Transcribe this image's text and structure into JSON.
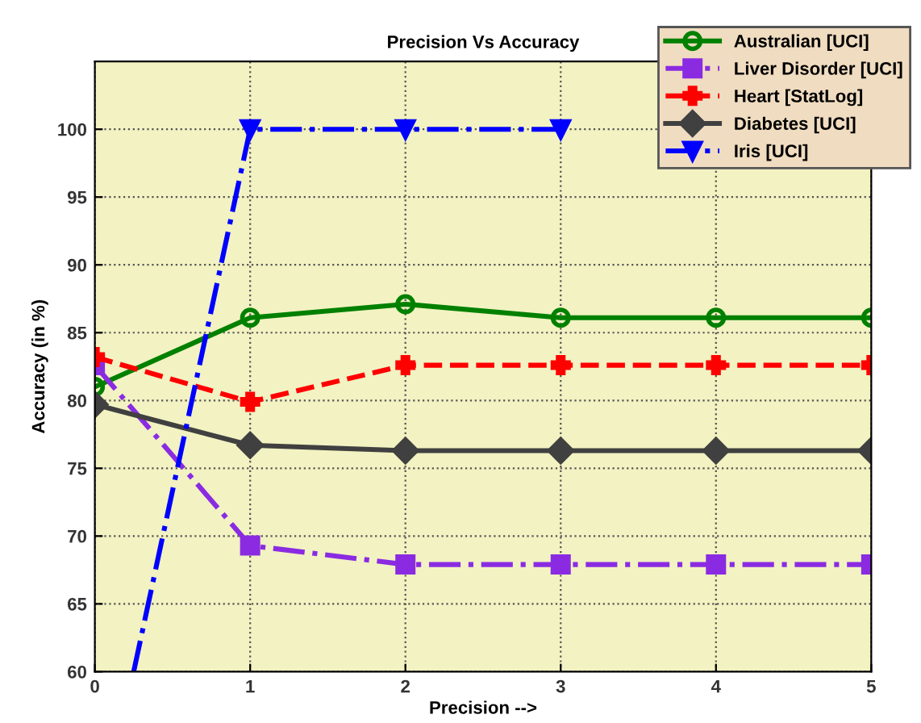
{
  "chart_data": {
    "type": "line",
    "title": "Precision Vs Accuracy",
    "xlabel": "Precision -->",
    "ylabel": "Accuracy (in %)",
    "x": [
      0,
      1,
      2,
      3,
      4,
      5
    ],
    "xlim": [
      0,
      5
    ],
    "xticks": [
      0,
      1,
      2,
      3,
      4,
      5
    ],
    "ylim": [
      60,
      105
    ],
    "yticks": [
      60,
      65,
      70,
      75,
      80,
      85,
      90,
      95,
      100
    ],
    "grid": true,
    "legend": "top right",
    "series": [
      {
        "name": "Australian [UCI]",
        "color": "#008000",
        "marker": "circle",
        "line_style": "solid",
        "values": [
          81,
          86.1,
          87.1,
          86.1,
          86.1,
          86.1
        ]
      },
      {
        "name": "Liver Disorder [UCI]",
        "color": "#8a2be2",
        "marker": "square",
        "line_style": "dashdot",
        "values": [
          82.6,
          69.3,
          67.9,
          67.9,
          67.9,
          67.9
        ]
      },
      {
        "name": "Heart [StatLog]",
        "color": "#ff0000",
        "marker": "cross",
        "line_style": "dashed",
        "values": [
          83.2,
          79.9,
          82.6,
          82.6,
          82.6,
          82.6
        ]
      },
      {
        "name": "Diabetes [UCI]",
        "color": "#404040",
        "marker": "diamond",
        "line_style": "solid",
        "values": [
          79.7,
          76.7,
          76.3,
          76.3,
          76.3,
          76.3
        ]
      },
      {
        "name": "Iris [UCI]",
        "color": "#0000ff",
        "marker": "triangle",
        "line_style": "dashdot",
        "x": [
          0.25,
          1,
          2,
          3
        ],
        "values": [
          60,
          100,
          100,
          100
        ]
      }
    ]
  }
}
